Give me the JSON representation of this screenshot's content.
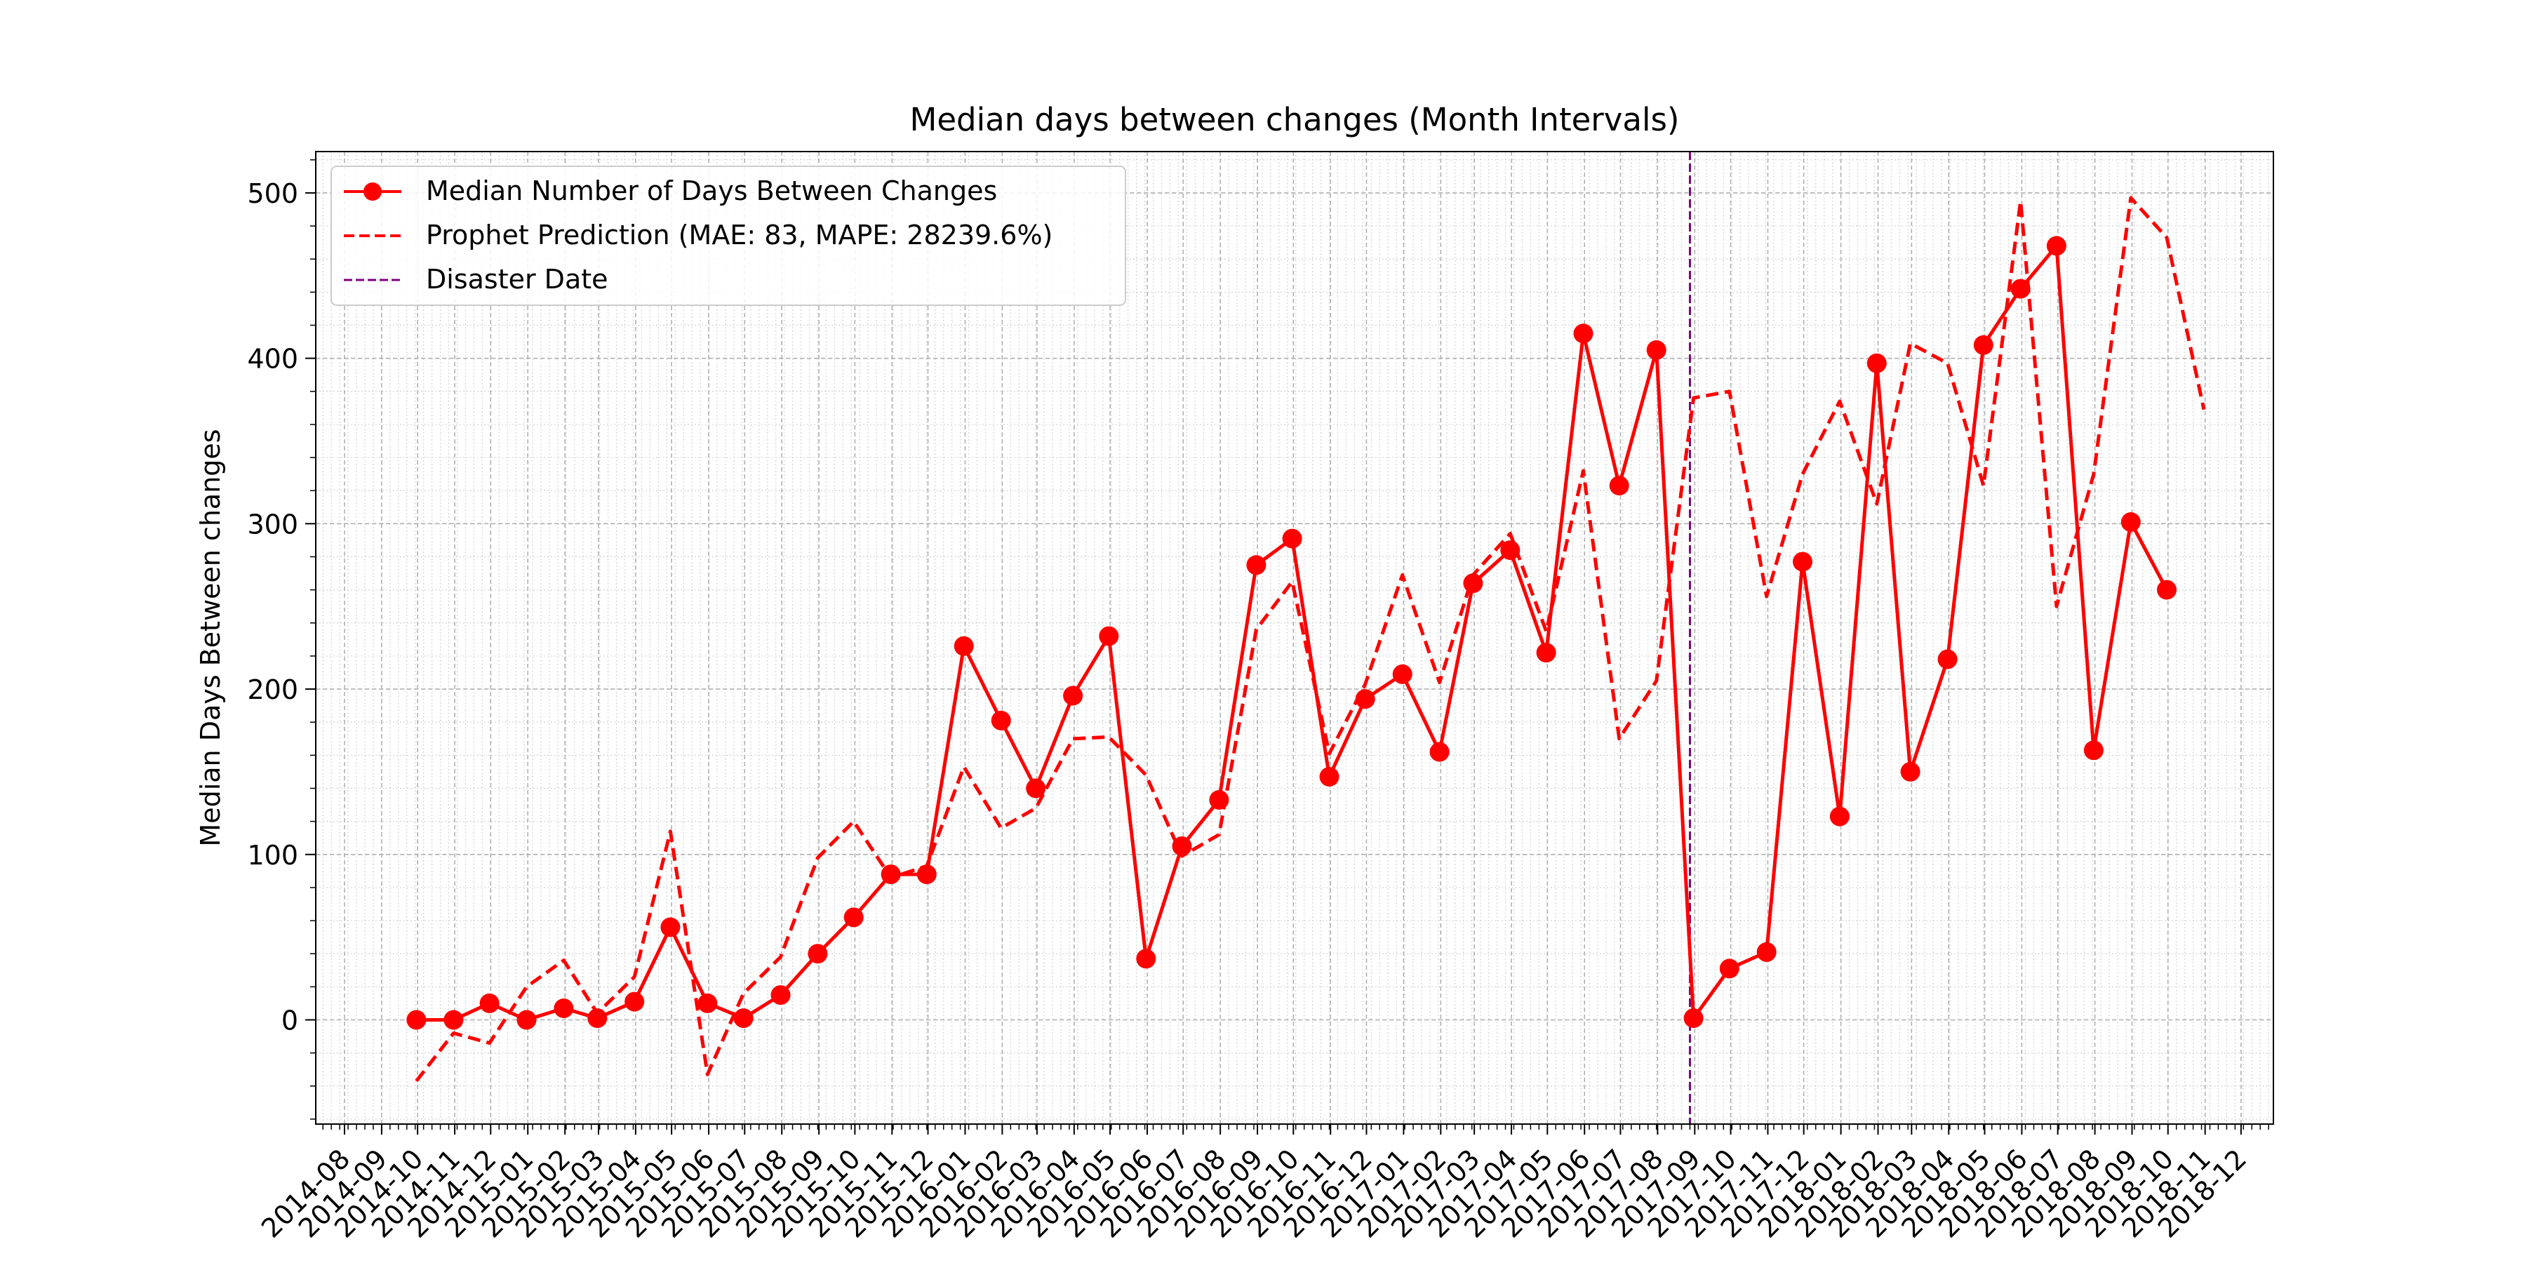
{
  "chart_data": {
    "type": "line",
    "title": "Median days between changes (Month Intervals)",
    "xlabel": "",
    "ylabel": "Median Days Between changes",
    "grid": true,
    "legend_position": "top-left",
    "xlim": [
      "2014-07-08",
      "2018-12-28"
    ],
    "ylim": [
      -63,
      525
    ],
    "yticks": [
      0,
      100,
      200,
      300,
      400,
      500
    ],
    "xticks": [
      "2014-08",
      "2014-09",
      "2014-10",
      "2014-11",
      "2014-12",
      "2015-01",
      "2015-02",
      "2015-03",
      "2015-04",
      "2015-05",
      "2015-06",
      "2015-07",
      "2015-08",
      "2015-09",
      "2015-10",
      "2015-11",
      "2015-12",
      "2016-01",
      "2016-02",
      "2016-03",
      "2016-04",
      "2016-05",
      "2016-06",
      "2016-07",
      "2016-08",
      "2016-09",
      "2016-10",
      "2016-11",
      "2016-12",
      "2017-01",
      "2017-02",
      "2017-03",
      "2017-04",
      "2017-05",
      "2017-06",
      "2017-07",
      "2017-08",
      "2017-09",
      "2017-10",
      "2017-11",
      "2017-12",
      "2018-01",
      "2018-02",
      "2018-03",
      "2018-04",
      "2018-05",
      "2018-06",
      "2018-07",
      "2018-08",
      "2018-09",
      "2018-10",
      "2018-11",
      "2018-12"
    ],
    "disaster_date": "2017-08-28",
    "series": [
      {
        "name": "Median Number of Days Between Changes",
        "color": "#ff0000",
        "style": "solid",
        "marker": "circle",
        "points": [
          [
            "2014-09-30",
            0
          ],
          [
            "2014-10-31",
            0
          ],
          [
            "2014-11-30",
            10
          ],
          [
            "2014-12-31",
            0
          ],
          [
            "2015-01-31",
            7
          ],
          [
            "2015-02-28",
            1
          ],
          [
            "2015-03-31",
            11
          ],
          [
            "2015-04-30",
            56
          ],
          [
            "2015-05-31",
            10
          ],
          [
            "2015-06-30",
            1
          ],
          [
            "2015-07-31",
            15
          ],
          [
            "2015-08-31",
            40
          ],
          [
            "2015-09-30",
            62
          ],
          [
            "2015-10-31",
            88
          ],
          [
            "2015-11-30",
            88
          ],
          [
            "2015-12-31",
            226
          ],
          [
            "2016-01-31",
            181
          ],
          [
            "2016-02-29",
            140
          ],
          [
            "2016-03-31",
            196
          ],
          [
            "2016-04-30",
            232
          ],
          [
            "2016-05-31",
            37
          ],
          [
            "2016-06-30",
            105
          ],
          [
            "2016-07-31",
            133
          ],
          [
            "2016-08-31",
            275
          ],
          [
            "2016-09-30",
            291
          ],
          [
            "2016-10-31",
            147
          ],
          [
            "2016-11-30",
            194
          ],
          [
            "2016-12-31",
            209
          ],
          [
            "2017-01-31",
            162
          ],
          [
            "2017-02-28",
            264
          ],
          [
            "2017-03-31",
            284
          ],
          [
            "2017-04-30",
            222
          ],
          [
            "2017-05-31",
            415
          ],
          [
            "2017-06-30",
            323
          ],
          [
            "2017-07-31",
            405
          ],
          [
            "2017-08-31",
            1
          ],
          [
            "2017-09-30",
            31
          ],
          [
            "2017-10-31",
            41
          ],
          [
            "2017-11-30",
            277
          ],
          [
            "2017-12-31",
            123
          ],
          [
            "2018-01-31",
            397
          ],
          [
            "2018-02-28",
            150
          ],
          [
            "2018-03-31",
            218
          ],
          [
            "2018-04-30",
            408
          ],
          [
            "2018-05-31",
            442
          ],
          [
            "2018-06-30",
            468
          ],
          [
            "2018-07-31",
            163
          ],
          [
            "2018-08-31",
            301
          ],
          [
            "2018-09-30",
            260
          ]
        ]
      },
      {
        "name": "Prophet Prediction (MAE: 83, MAPE: 28239.6%)",
        "color": "#ff0000",
        "style": "dashed",
        "marker": "none",
        "points": [
          [
            "2014-09-30",
            -37
          ],
          [
            "2014-10-31",
            -8
          ],
          [
            "2014-11-30",
            -14
          ],
          [
            "2014-12-31",
            20
          ],
          [
            "2015-01-31",
            36
          ],
          [
            "2015-02-28",
            4
          ],
          [
            "2015-03-31",
            26
          ],
          [
            "2015-04-30",
            114
          ],
          [
            "2015-05-31",
            -33
          ],
          [
            "2015-06-30",
            16
          ],
          [
            "2015-07-31",
            38
          ],
          [
            "2015-08-31",
            98
          ],
          [
            "2015-09-30",
            120
          ],
          [
            "2015-10-31",
            86
          ],
          [
            "2015-11-30",
            93
          ],
          [
            "2015-12-31",
            153
          ],
          [
            "2016-01-31",
            116
          ],
          [
            "2016-02-29",
            128
          ],
          [
            "2016-03-31",
            170
          ],
          [
            "2016-04-30",
            171
          ],
          [
            "2016-05-31",
            148
          ],
          [
            "2016-06-30",
            99
          ],
          [
            "2016-07-31",
            112
          ],
          [
            "2016-08-31",
            236
          ],
          [
            "2016-09-30",
            265
          ],
          [
            "2016-10-31",
            161
          ],
          [
            "2016-11-30",
            203
          ],
          [
            "2016-12-31",
            269
          ],
          [
            "2017-01-31",
            204
          ],
          [
            "2017-02-28",
            269
          ],
          [
            "2017-03-31",
            294
          ],
          [
            "2017-04-30",
            235
          ],
          [
            "2017-05-31",
            332
          ],
          [
            "2017-06-30",
            170
          ],
          [
            "2017-07-31",
            205
          ],
          [
            "2017-08-31",
            376
          ],
          [
            "2017-09-30",
            380
          ],
          [
            "2017-10-31",
            256
          ],
          [
            "2017-11-30",
            330
          ],
          [
            "2017-12-31",
            374
          ],
          [
            "2018-01-31",
            312
          ],
          [
            "2018-02-28",
            409
          ],
          [
            "2018-03-31",
            397
          ],
          [
            "2018-04-30",
            323
          ],
          [
            "2018-05-31",
            495
          ],
          [
            "2018-06-30",
            250
          ],
          [
            "2018-07-31",
            330
          ],
          [
            "2018-08-31",
            497
          ],
          [
            "2018-09-30",
            473
          ],
          [
            "2018-10-31",
            369
          ]
        ]
      },
      {
        "name": "Disaster Date",
        "color": "#800080",
        "style": "dashed-vertical",
        "marker": "none",
        "points": []
      }
    ]
  }
}
